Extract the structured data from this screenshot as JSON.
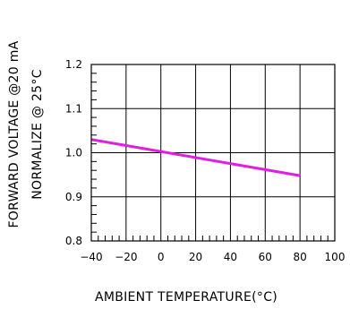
{
  "chart_data": {
    "type": "line",
    "title": "",
    "xlabel": "AMBIENT TEMPERATURE(°C)",
    "ylabel_lines": [
      "FORWARD VOLTAGE @20 mA",
      "NORMALIZE @ 25°C"
    ],
    "xlim": [
      -40,
      100
    ],
    "ylim": [
      0.8,
      1.2
    ],
    "x_ticks": [
      -40,
      -20,
      0,
      20,
      40,
      60,
      80,
      100
    ],
    "x_tick_labels": [
      "−40",
      "−20",
      "0",
      "20",
      "40",
      "60",
      "80",
      "100"
    ],
    "y_ticks": [
      0.8,
      0.9,
      1.0,
      1.1,
      1.2
    ],
    "y_tick_labels": [
      "0.8",
      "0.9",
      "1.0",
      "1.1",
      "1.2"
    ],
    "grid": true,
    "series": [
      {
        "color": "#e020e0",
        "x": [
          -40,
          80
        ],
        "y": [
          1.03,
          0.948
        ]
      }
    ]
  }
}
